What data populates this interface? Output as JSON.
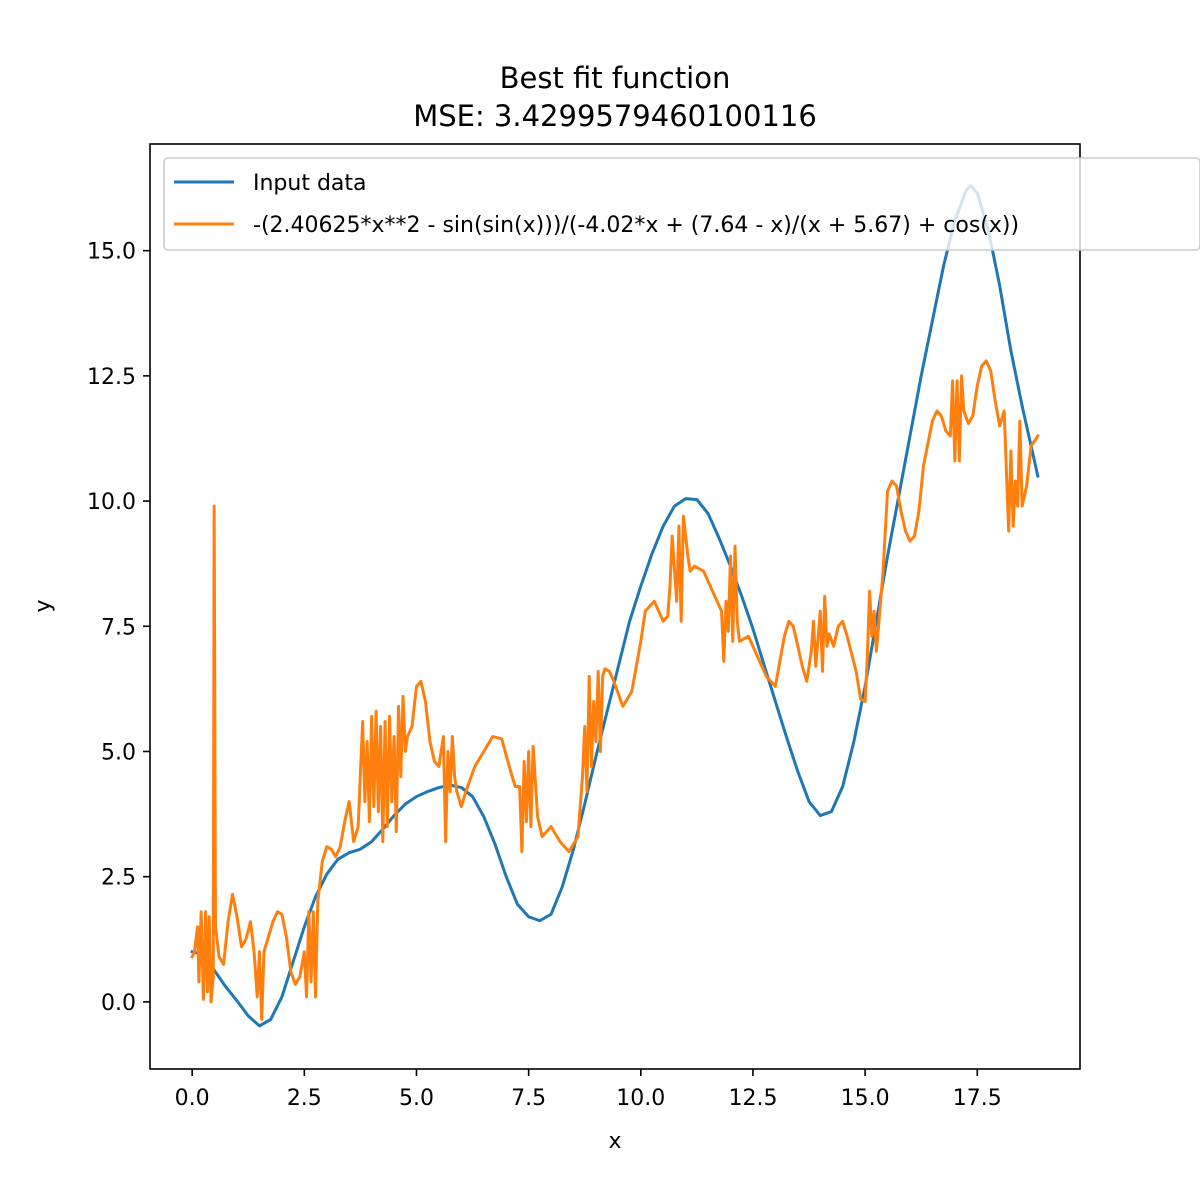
{
  "chart_data": {
    "type": "line",
    "title": "Best fit function",
    "subtitle": "MSE: 3.4299579460100116",
    "xlabel": "x",
    "ylabel": "y",
    "xlim": [
      -0.94,
      19.79
    ],
    "ylim": [
      -1.34,
      17.13
    ],
    "xticks": [
      {
        "value": 0.0,
        "label": "0.0"
      },
      {
        "value": 2.5,
        "label": "2.5"
      },
      {
        "value": 5.0,
        "label": "5.0"
      },
      {
        "value": 7.5,
        "label": "7.5"
      },
      {
        "value": 10.0,
        "label": "10.0"
      },
      {
        "value": 12.5,
        "label": "12.5"
      },
      {
        "value": 15.0,
        "label": "15.0"
      },
      {
        "value": 17.5,
        "label": "17.5"
      }
    ],
    "yticks": [
      {
        "value": 0.0,
        "label": "0.0"
      },
      {
        "value": 2.5,
        "label": "2.5"
      },
      {
        "value": 5.0,
        "label": "5.0"
      },
      {
        "value": 7.5,
        "label": "7.5"
      },
      {
        "value": 10.0,
        "label": "10.0"
      },
      {
        "value": 12.5,
        "label": "12.5"
      },
      {
        "value": 15.0,
        "label": "15.0"
      }
    ],
    "grid": false,
    "legend_position": "top-left",
    "series": [
      {
        "name": "Input data",
        "color": "#1f77b4",
        "points": [
          [
            0.0,
            1.0
          ],
          [
            0.25,
            0.95
          ],
          [
            0.5,
            0.62
          ],
          [
            0.75,
            0.3
          ],
          [
            1.0,
            0.02
          ],
          [
            1.25,
            -0.28
          ],
          [
            1.5,
            -0.48
          ],
          [
            1.75,
            -0.35
          ],
          [
            2.0,
            0.1
          ],
          [
            2.25,
            0.8
          ],
          [
            2.5,
            1.5
          ],
          [
            2.75,
            2.1
          ],
          [
            3.0,
            2.55
          ],
          [
            3.25,
            2.85
          ],
          [
            3.5,
            2.98
          ],
          [
            3.75,
            3.05
          ],
          [
            4.0,
            3.2
          ],
          [
            4.25,
            3.45
          ],
          [
            4.5,
            3.72
          ],
          [
            4.75,
            3.95
          ],
          [
            5.0,
            4.1
          ],
          [
            5.25,
            4.2
          ],
          [
            5.5,
            4.28
          ],
          [
            5.75,
            4.33
          ],
          [
            6.0,
            4.28
          ],
          [
            6.25,
            4.1
          ],
          [
            6.5,
            3.7
          ],
          [
            6.75,
            3.15
          ],
          [
            7.0,
            2.5
          ],
          [
            7.25,
            1.95
          ],
          [
            7.5,
            1.7
          ],
          [
            7.75,
            1.62
          ],
          [
            8.0,
            1.75
          ],
          [
            8.25,
            2.3
          ],
          [
            8.5,
            3.05
          ],
          [
            8.75,
            3.95
          ],
          [
            9.0,
            4.9
          ],
          [
            9.25,
            5.8
          ],
          [
            9.5,
            6.7
          ],
          [
            9.75,
            7.6
          ],
          [
            10.0,
            8.3
          ],
          [
            10.25,
            8.95
          ],
          [
            10.5,
            9.5
          ],
          [
            10.75,
            9.9
          ],
          [
            11.0,
            10.05
          ],
          [
            11.25,
            10.03
          ],
          [
            11.5,
            9.75
          ],
          [
            11.75,
            9.25
          ],
          [
            12.0,
            8.7
          ],
          [
            12.25,
            8.1
          ],
          [
            12.5,
            7.45
          ],
          [
            12.75,
            6.72
          ],
          [
            13.0,
            6.0
          ],
          [
            13.25,
            5.28
          ],
          [
            13.5,
            4.6
          ],
          [
            13.75,
            4.0
          ],
          [
            14.0,
            3.72
          ],
          [
            14.25,
            3.8
          ],
          [
            14.5,
            4.3
          ],
          [
            14.75,
            5.2
          ],
          [
            15.0,
            6.3
          ],
          [
            15.25,
            7.6
          ],
          [
            15.5,
            8.9
          ],
          [
            15.75,
            10.1
          ],
          [
            16.0,
            11.3
          ],
          [
            16.25,
            12.5
          ],
          [
            16.5,
            13.6
          ],
          [
            16.75,
            14.7
          ],
          [
            17.0,
            15.6
          ],
          [
            17.25,
            16.2
          ],
          [
            17.35,
            16.3
          ],
          [
            17.5,
            16.15
          ],
          [
            17.75,
            15.4
          ],
          [
            18.0,
            14.3
          ],
          [
            18.25,
            13.0
          ],
          [
            18.5,
            11.9
          ],
          [
            18.85,
            10.5
          ]
        ]
      },
      {
        "name": "-(2.40625*x**2 - sin(sin(x)))/(-4.02*x + (7.64 - x)/(x + 5.67) + cos(x))",
        "color": "#ff7f0e",
        "points": [
          [
            0.0,
            0.9
          ],
          [
            0.05,
            1.0
          ],
          [
            0.12,
            1.5
          ],
          [
            0.15,
            0.4
          ],
          [
            0.2,
            1.8
          ],
          [
            0.25,
            0.05
          ],
          [
            0.3,
            1.8
          ],
          [
            0.34,
            0.2
          ],
          [
            0.38,
            1.7
          ],
          [
            0.42,
            0.0
          ],
          [
            0.47,
            0.5
          ],
          [
            0.49,
            9.9
          ],
          [
            0.52,
            1.5
          ],
          [
            0.6,
            0.9
          ],
          [
            0.7,
            0.75
          ],
          [
            0.8,
            1.6
          ],
          [
            0.9,
            2.15
          ],
          [
            1.0,
            1.7
          ],
          [
            1.1,
            1.1
          ],
          [
            1.2,
            1.25
          ],
          [
            1.3,
            1.6
          ],
          [
            1.38,
            1.0
          ],
          [
            1.45,
            0.1
          ],
          [
            1.5,
            1.0
          ],
          [
            1.55,
            -0.35
          ],
          [
            1.6,
            1.0
          ],
          [
            1.7,
            1.3
          ],
          [
            1.8,
            1.6
          ],
          [
            1.9,
            1.8
          ],
          [
            2.0,
            1.75
          ],
          [
            2.1,
            1.3
          ],
          [
            2.2,
            0.6
          ],
          [
            2.3,
            0.35
          ],
          [
            2.4,
            0.5
          ],
          [
            2.5,
            1.0
          ],
          [
            2.55,
            0.1
          ],
          [
            2.6,
            1.8
          ],
          [
            2.65,
            0.4
          ],
          [
            2.7,
            1.8
          ],
          [
            2.75,
            0.1
          ],
          [
            2.8,
            2.0
          ],
          [
            2.9,
            2.8
          ],
          [
            3.0,
            3.1
          ],
          [
            3.1,
            3.05
          ],
          [
            3.2,
            2.9
          ],
          [
            3.3,
            3.1
          ],
          [
            3.4,
            3.6
          ],
          [
            3.5,
            4.0
          ],
          [
            3.6,
            3.2
          ],
          [
            3.7,
            3.5
          ],
          [
            3.8,
            5.6
          ],
          [
            3.85,
            4.0
          ],
          [
            3.9,
            5.2
          ],
          [
            3.95,
            3.6
          ],
          [
            4.0,
            5.7
          ],
          [
            4.05,
            3.9
          ],
          [
            4.1,
            5.8
          ],
          [
            4.15,
            3.8
          ],
          [
            4.2,
            5.5
          ],
          [
            4.25,
            3.2
          ],
          [
            4.3,
            5.6
          ],
          [
            4.35,
            3.5
          ],
          [
            4.4,
            5.7
          ],
          [
            4.45,
            4.0
          ],
          [
            4.5,
            5.3
          ],
          [
            4.55,
            3.4
          ],
          [
            4.6,
            5.9
          ],
          [
            4.65,
            4.5
          ],
          [
            4.7,
            6.1
          ],
          [
            4.75,
            5.0
          ],
          [
            4.8,
            5.3
          ],
          [
            4.9,
            5.5
          ],
          [
            5.0,
            6.3
          ],
          [
            5.1,
            6.4
          ],
          [
            5.2,
            6.0
          ],
          [
            5.3,
            5.2
          ],
          [
            5.4,
            4.8
          ],
          [
            5.5,
            4.7
          ],
          [
            5.6,
            5.3
          ],
          [
            5.65,
            3.2
          ],
          [
            5.7,
            5.0
          ],
          [
            5.75,
            4.2
          ],
          [
            5.8,
            5.3
          ],
          [
            5.85,
            4.5
          ],
          [
            5.9,
            4.2
          ],
          [
            6.0,
            3.9
          ],
          [
            6.1,
            4.2
          ],
          [
            6.3,
            4.7
          ],
          [
            6.5,
            5.0
          ],
          [
            6.7,
            5.3
          ],
          [
            6.9,
            5.25
          ],
          [
            7.1,
            4.6
          ],
          [
            7.2,
            4.3
          ],
          [
            7.3,
            4.3
          ],
          [
            7.35,
            3.0
          ],
          [
            7.4,
            4.8
          ],
          [
            7.45,
            3.6
          ],
          [
            7.5,
            5.0
          ],
          [
            7.55,
            3.5
          ],
          [
            7.6,
            5.1
          ],
          [
            7.7,
            3.7
          ],
          [
            7.8,
            3.3
          ],
          [
            8.0,
            3.5
          ],
          [
            8.2,
            3.2
          ],
          [
            8.4,
            3.0
          ],
          [
            8.6,
            3.3
          ],
          [
            8.7,
            4.5
          ],
          [
            8.75,
            5.5
          ],
          [
            8.8,
            4.2
          ],
          [
            8.85,
            6.5
          ],
          [
            8.9,
            4.7
          ],
          [
            8.95,
            6.0
          ],
          [
            9.0,
            5.2
          ],
          [
            9.05,
            6.6
          ],
          [
            9.1,
            5.0
          ],
          [
            9.15,
            6.5
          ],
          [
            9.2,
            6.65
          ],
          [
            9.3,
            6.6
          ],
          [
            9.4,
            6.4
          ],
          [
            9.6,
            5.9
          ],
          [
            9.8,
            6.2
          ],
          [
            10.0,
            7.2
          ],
          [
            10.1,
            7.8
          ],
          [
            10.3,
            8.0
          ],
          [
            10.5,
            7.6
          ],
          [
            10.6,
            7.7
          ],
          [
            10.65,
            8.3
          ],
          [
            10.7,
            9.3
          ],
          [
            10.8,
            8.0
          ],
          [
            10.85,
            9.5
          ],
          [
            10.9,
            7.6
          ],
          [
            10.95,
            9.7
          ],
          [
            11.0,
            9.3
          ],
          [
            11.05,
            8.9
          ],
          [
            11.1,
            8.6
          ],
          [
            11.2,
            8.7
          ],
          [
            11.4,
            8.6
          ],
          [
            11.6,
            8.2
          ],
          [
            11.8,
            7.8
          ],
          [
            11.85,
            6.8
          ],
          [
            11.9,
            8.0
          ],
          [
            11.95,
            7.4
          ],
          [
            12.0,
            8.9
          ],
          [
            12.05,
            7.2
          ],
          [
            12.1,
            9.1
          ],
          [
            12.15,
            7.6
          ],
          [
            12.2,
            7.2
          ],
          [
            12.4,
            7.3
          ],
          [
            12.6,
            6.9
          ],
          [
            12.8,
            6.5
          ],
          [
            13.0,
            6.3
          ],
          [
            13.2,
            7.3
          ],
          [
            13.3,
            7.6
          ],
          [
            13.4,
            7.5
          ],
          [
            13.6,
            6.7
          ],
          [
            13.7,
            6.4
          ],
          [
            13.8,
            7.0
          ],
          [
            13.85,
            7.6
          ],
          [
            13.9,
            6.7
          ],
          [
            14.0,
            7.8
          ],
          [
            14.05,
            6.6
          ],
          [
            14.1,
            8.1
          ],
          [
            14.15,
            7.1
          ],
          [
            14.2,
            7.35
          ],
          [
            14.3,
            7.1
          ],
          [
            14.4,
            7.5
          ],
          [
            14.5,
            7.6
          ],
          [
            14.6,
            7.3
          ],
          [
            14.8,
            6.6
          ],
          [
            14.9,
            6.05
          ],
          [
            15.0,
            6.0
          ],
          [
            15.05,
            6.9
          ],
          [
            15.1,
            8.2
          ],
          [
            15.15,
            7.3
          ],
          [
            15.2,
            7.8
          ],
          [
            15.25,
            7.0
          ],
          [
            15.3,
            7.5
          ],
          [
            15.4,
            8.6
          ],
          [
            15.5,
            10.2
          ],
          [
            15.6,
            10.4
          ],
          [
            15.7,
            10.3
          ],
          [
            15.8,
            9.8
          ],
          [
            15.9,
            9.4
          ],
          [
            16.0,
            9.2
          ],
          [
            16.1,
            9.3
          ],
          [
            16.2,
            9.8
          ],
          [
            16.3,
            10.7
          ],
          [
            16.5,
            11.6
          ],
          [
            16.6,
            11.8
          ],
          [
            16.7,
            11.7
          ],
          [
            16.8,
            11.4
          ],
          [
            16.9,
            11.3
          ],
          [
            16.95,
            12.4
          ],
          [
            17.0,
            10.8
          ],
          [
            17.05,
            12.4
          ],
          [
            17.1,
            10.8
          ],
          [
            17.15,
            12.5
          ],
          [
            17.2,
            11.8
          ],
          [
            17.3,
            11.55
          ],
          [
            17.4,
            11.7
          ],
          [
            17.5,
            12.3
          ],
          [
            17.6,
            12.7
          ],
          [
            17.7,
            12.8
          ],
          [
            17.8,
            12.6
          ],
          [
            17.9,
            12.0
          ],
          [
            18.0,
            11.5
          ],
          [
            18.1,
            11.8
          ],
          [
            18.2,
            9.4
          ],
          [
            18.25,
            11.0
          ],
          [
            18.3,
            9.5
          ],
          [
            18.35,
            10.4
          ],
          [
            18.4,
            9.9
          ],
          [
            18.45,
            11.6
          ],
          [
            18.5,
            9.9
          ],
          [
            18.6,
            10.3
          ],
          [
            18.7,
            11.1
          ],
          [
            18.85,
            11.3
          ]
        ]
      }
    ]
  }
}
